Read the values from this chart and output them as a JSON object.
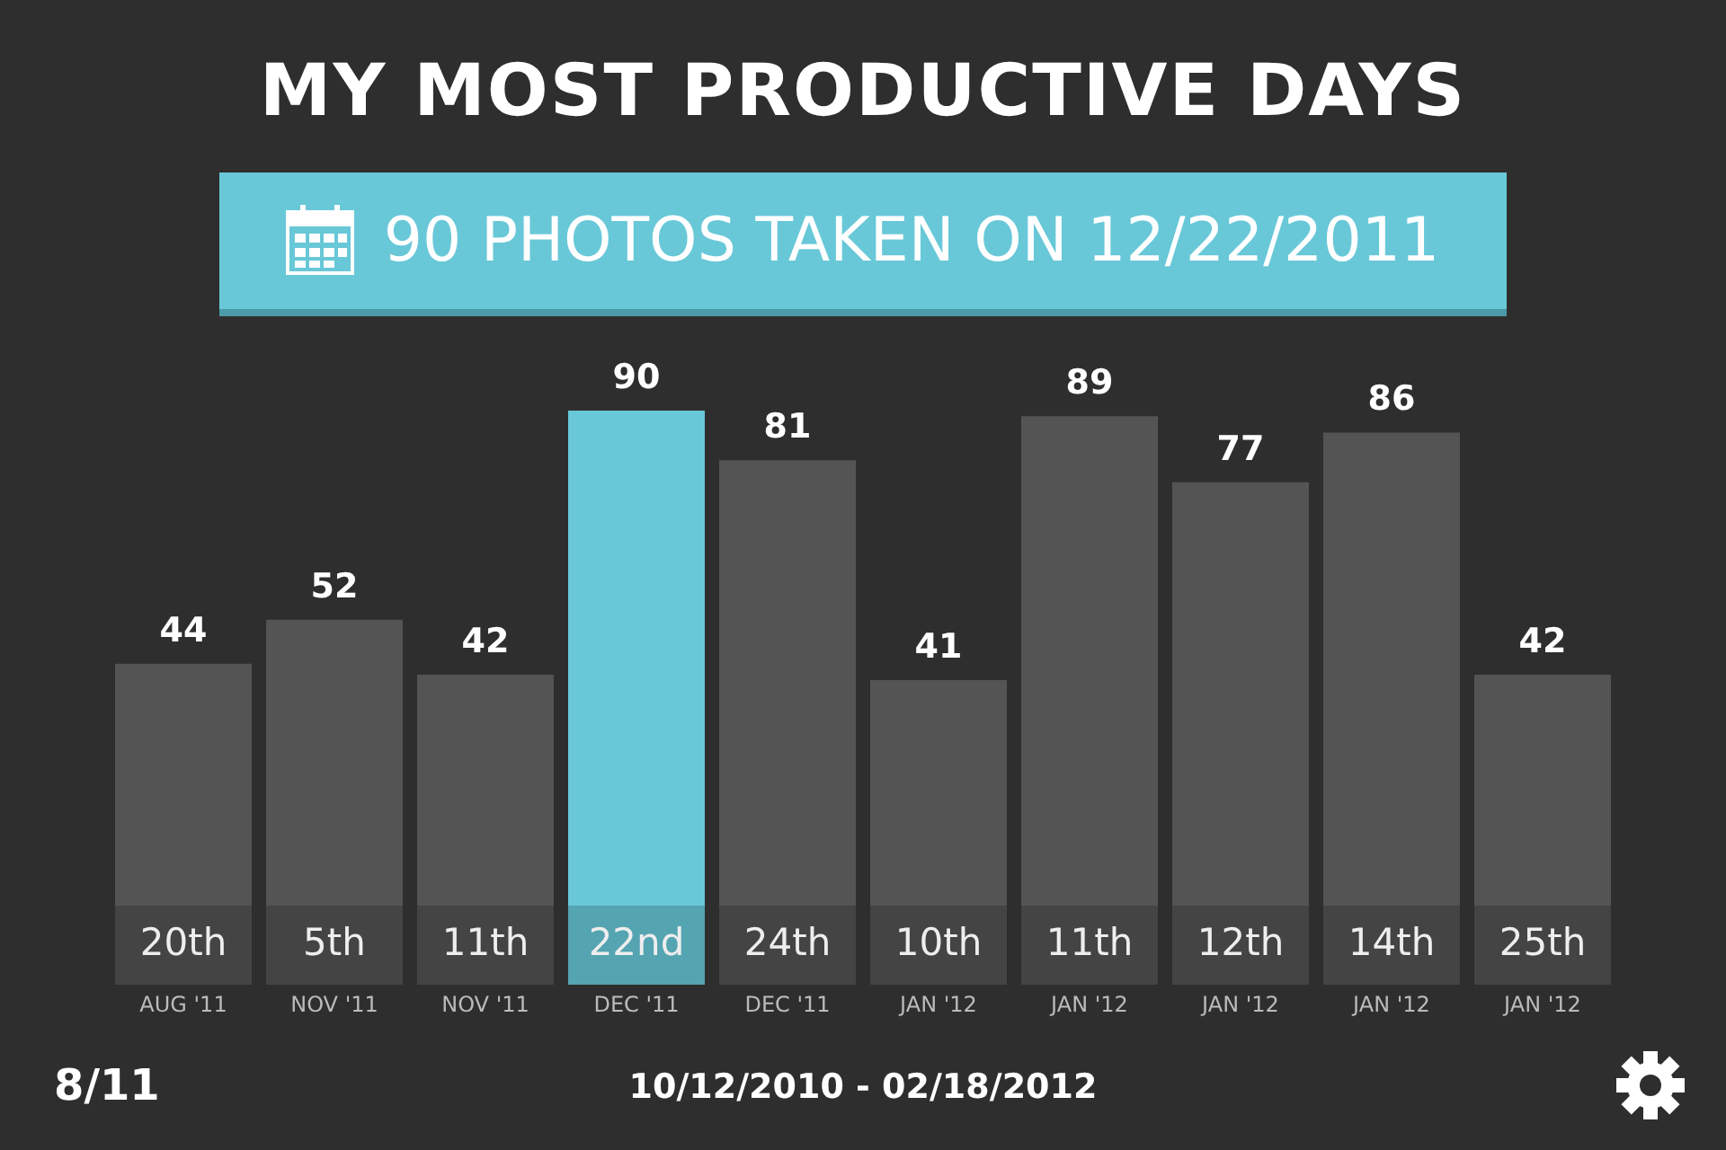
{
  "chart_data": {
    "type": "bar",
    "title": "MY MOST PRODUCTIVE DAYS",
    "subtitle": "90 PHOTOS TAKEN ON 12/22/2011",
    "categories": [
      "20th\nAUG '11",
      "5th\nNOV '11",
      "11th\nNOV '11",
      "22nd\nDEC '11",
      "24th\nDEC '11",
      "10th\nJAN '12",
      "11th\nJAN '12",
      "12th\nJAN '12",
      "14th\nJAN '12",
      "25th\nJAN '12"
    ],
    "values": [
      44,
      52,
      42,
      90,
      81,
      41,
      89,
      77,
      86,
      42
    ],
    "colors": [
      "#545454",
      "#545454",
      "#545454",
      "#68c8d8",
      "#545454",
      "#545454",
      "#545454",
      "#545454",
      "#545454",
      "#545454"
    ],
    "data_labels": true,
    "legend": false,
    "annotations": [
      "8/11",
      "10/12/2010 - 02/18/2012"
    ]
  }
}
